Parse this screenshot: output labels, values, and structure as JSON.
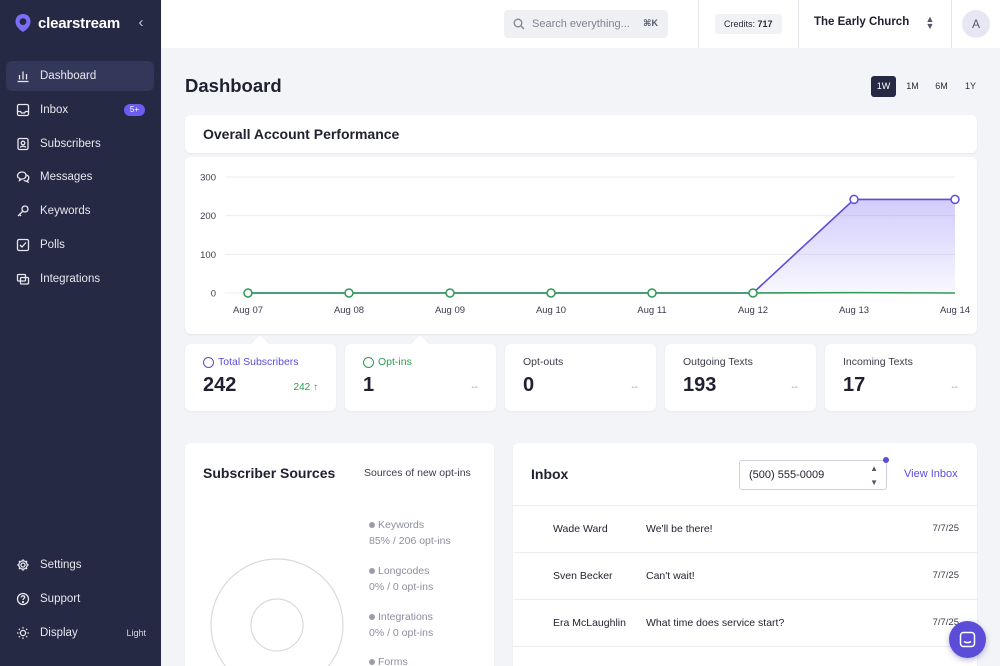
{
  "brand": {
    "name": "clearstream"
  },
  "sidebar": {
    "items": [
      {
        "label": "Dashboard",
        "icon": "chart-bar-icon",
        "active": true
      },
      {
        "label": "Inbox",
        "icon": "inbox-icon",
        "badge": "5+"
      },
      {
        "label": "Subscribers",
        "icon": "contacts-icon"
      },
      {
        "label": "Messages",
        "icon": "messages-icon"
      },
      {
        "label": "Keywords",
        "icon": "key-icon"
      },
      {
        "label": "Polls",
        "icon": "poll-icon"
      },
      {
        "label": "Integrations",
        "icon": "integrations-icon"
      }
    ],
    "bottom": [
      {
        "label": "Settings",
        "icon": "gear-icon"
      },
      {
        "label": "Support",
        "icon": "help-icon"
      },
      {
        "label": "Display",
        "icon": "sun-icon",
        "value": "Light"
      }
    ]
  },
  "topbar": {
    "search_placeholder": "Search everything...",
    "shortcut": "⌘K",
    "credits_label": "Credits:",
    "credits_value": "717",
    "org_name": "The Early Church",
    "avatar_initial": "A"
  },
  "page": {
    "title": "Dashboard",
    "ranges": [
      "1W",
      "1M",
      "6M",
      "1Y"
    ],
    "active_range": "1W"
  },
  "performance": {
    "title": "Overall Account Performance"
  },
  "chart_data": {
    "type": "line",
    "categories": [
      "Aug 07",
      "Aug 08",
      "Aug 09",
      "Aug 10",
      "Aug 11",
      "Aug 12",
      "Aug 13",
      "Aug 14"
    ],
    "series": [
      {
        "name": "Total Subscribers",
        "color": "#5b4dd8",
        "values": [
          0,
          0,
          0,
          0,
          0,
          0,
          242,
          242
        ]
      },
      {
        "name": "Opt-ins",
        "color": "#2e9a55",
        "values": [
          0,
          0,
          0,
          0,
          0,
          0,
          1,
          0
        ]
      }
    ],
    "ylim": [
      0,
      300
    ],
    "yticks": [
      0,
      100,
      200,
      300
    ],
    "grid": true
  },
  "stats": [
    {
      "label": "Total Subscribers",
      "value": "242",
      "delta": "242 ↑",
      "style": "accent"
    },
    {
      "label": "Opt-ins",
      "value": "1",
      "delta": "--",
      "style": "green"
    },
    {
      "label": "Opt-outs",
      "value": "0",
      "delta": "--",
      "style": "plain"
    },
    {
      "label": "Outgoing Texts",
      "value": "193",
      "delta": "--",
      "style": "plain"
    },
    {
      "label": "Incoming Texts",
      "value": "17",
      "delta": "--",
      "style": "plain"
    }
  ],
  "sources": {
    "title": "Subscriber Sources",
    "subtitle": "Sources of new opt-ins",
    "items": [
      {
        "name": "Keywords",
        "detail": "85% / 206 opt-ins"
      },
      {
        "name": "Longcodes",
        "detail": "0% / 0 opt-ins"
      },
      {
        "name": "Integrations",
        "detail": "0% / 0 opt-ins"
      },
      {
        "name": "Forms",
        "detail": ""
      }
    ]
  },
  "inbox": {
    "title": "Inbox",
    "phone": "(500) 555-0009",
    "view_link": "View Inbox",
    "rows": [
      {
        "name": "Wade Ward",
        "message": "We'll be there!",
        "date": "7/7/25"
      },
      {
        "name": "Sven Becker",
        "message": "Can't wait!",
        "date": "7/7/25"
      },
      {
        "name": "Era McLaughlin",
        "message": "What time does service start?",
        "date": "7/7/25"
      }
    ]
  }
}
